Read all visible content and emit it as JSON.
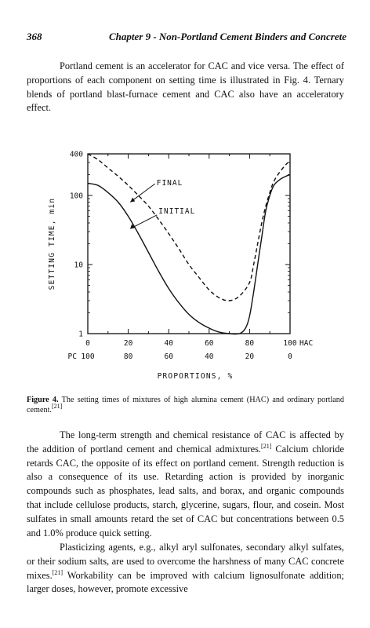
{
  "header": {
    "page_number": "368",
    "chapter_title": "Chapter 9 - Non-Portland Cement Binders and Concrete"
  },
  "paragraph1": "Portland cement is an accelerator for CAC and vice versa. The effect of proportions of each component on setting time is illustrated in Fig. 4. Ternary blends of portland blast-furnace cement and CAC also have an acceleratory effect.",
  "figure": {
    "caption_label": "Figure 4.",
    "caption_text": "The setting times of mixtures of high alumina cement (HAC) and ordinary portland cement.",
    "caption_ref": "[21]"
  },
  "chart_data": {
    "type": "line",
    "title": "",
    "xlabel": "PROPORTIONS, %",
    "ylabel": "SETTING TIME, min",
    "y_scale": "log",
    "ylim": [
      1,
      400
    ],
    "xlim": [
      0,
      100
    ],
    "y_ticks": [
      "400",
      "100",
      "10",
      "1"
    ],
    "x_ticks_hac": [
      "0",
      "20",
      "40",
      "60",
      "80",
      "100"
    ],
    "x_ticks_pc": [
      "100",
      "80",
      "60",
      "40",
      "20",
      "0"
    ],
    "x_row_label_hac": "HAC",
    "x_row_label_pc": "PC",
    "series": [
      {
        "name": "FINAL",
        "style": "dashed",
        "x": [
          0,
          5,
          10,
          15,
          20,
          25,
          30,
          35,
          40,
          45,
          50,
          55,
          60,
          65,
          70,
          75,
          80,
          82,
          84,
          86,
          88,
          90,
          92,
          95,
          98,
          100
        ],
        "y": [
          400,
          330,
          250,
          190,
          140,
          100,
          70,
          45,
          28,
          17,
          10,
          6.5,
          4.3,
          3.3,
          3.0,
          3.5,
          5.5,
          10,
          20,
          40,
          70,
          110,
          160,
          220,
          280,
          320
        ]
      },
      {
        "name": "INITIAL",
        "style": "solid",
        "x": [
          0,
          5,
          10,
          15,
          20,
          25,
          30,
          35,
          40,
          45,
          50,
          55,
          60,
          65,
          70,
          75,
          78,
          80,
          82,
          84,
          86,
          88,
          90,
          92,
          95,
          98,
          100
        ],
        "y": [
          150,
          140,
          110,
          80,
          50,
          28,
          15,
          8,
          4.5,
          2.8,
          1.9,
          1.45,
          1.2,
          1.05,
          1.0,
          1.0,
          1.2,
          1.8,
          4,
          10,
          25,
          60,
          100,
          140,
          170,
          190,
          200
        ]
      }
    ]
  },
  "paragraph2": "The long-term strength and chemical resistance of CAC is affected by the addition of portland cement and chemical admixtures.",
  "paragraph2_ref": "[21]",
  "paragraph2_rest": "Calcium chloride retards CAC, the opposite of its effect on portland cement. Strength reduction is also a consequence of its use. Retarding action is provided by inorganic compounds such as phosphates, lead salts, and borax, and organic compounds that include cellulose products, starch, glycerine, sugars, flour, and cosein. Most sulfates in small amounts retard the set of CAC but concentrations between 0.5 and 1.0% produce quick setting.",
  "paragraph3": "Plasticizing agents, e.g., alkyl aryl sulfonates, secondary alkyl sulfates, or their sodium salts, are used to overcome the harshness of many CAC concrete mixes.",
  "paragraph3_ref": "[21]",
  "paragraph3_rest": "Workability can be improved with calcium lignosulfonate addition; larger doses, however, promote excessive"
}
